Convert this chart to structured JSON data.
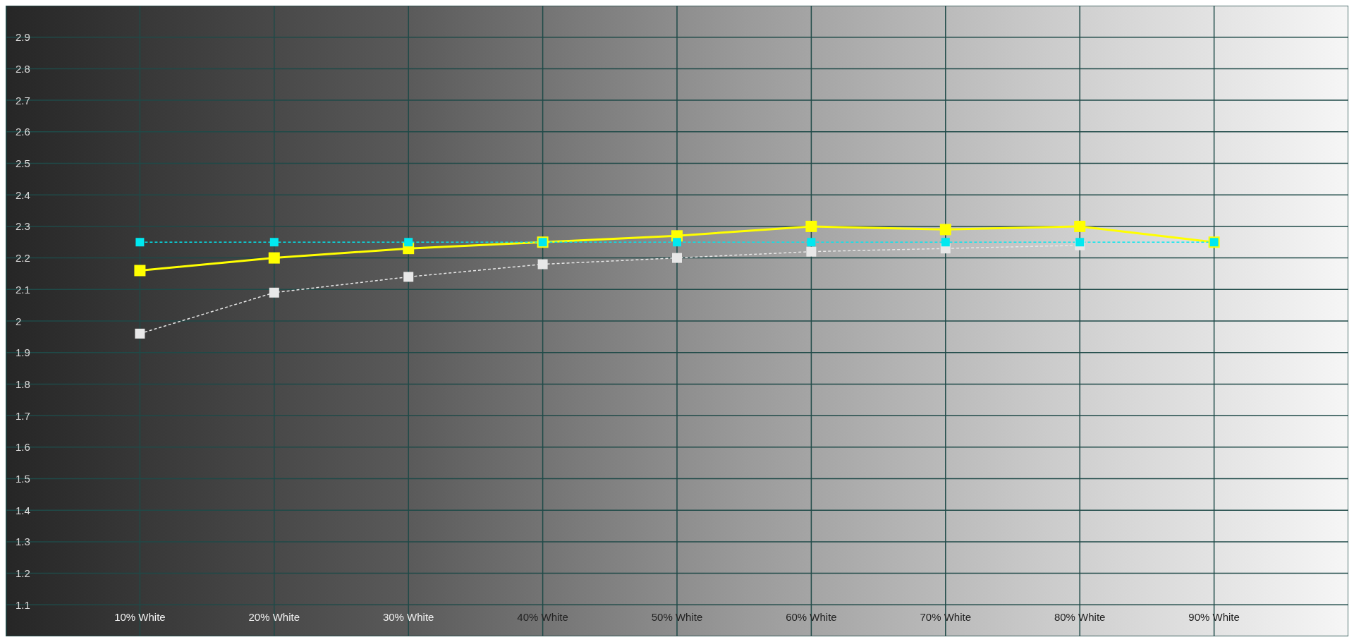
{
  "chart_data": {
    "type": "line",
    "categories": [
      null,
      "10% White",
      "20% White",
      "30% White",
      "40% White",
      "50% White",
      "60% White",
      "70% White",
      "80% White",
      "90% White",
      null
    ],
    "series": [
      {
        "color": "#ffff00",
        "line_style": "solid",
        "values": [
          null,
          2.16,
          2.2,
          2.23,
          2.25,
          2.27,
          2.3,
          2.29,
          2.3,
          2.25,
          null
        ]
      },
      {
        "color": "#e8e8e8",
        "line_style": "dashed",
        "values": [
          null,
          1.96,
          2.09,
          2.14,
          2.18,
          2.2,
          2.22,
          2.23,
          2.24,
          null,
          null
        ]
      },
      {
        "color": "#00e8f0",
        "line_style": "dashed",
        "values": [
          null,
          2.25,
          2.25,
          2.25,
          2.25,
          2.25,
          2.25,
          2.25,
          2.25,
          2.25,
          null
        ]
      }
    ],
    "ylim": [
      1.0,
      3.0
    ],
    "yticks": [
      1.1,
      1.2,
      1.3,
      1.4,
      1.5,
      1.6,
      1.7,
      1.8,
      1.9,
      2,
      2.1,
      2.2,
      2.3,
      2.4,
      2.5,
      2.6,
      2.7,
      2.8,
      2.9
    ],
    "grid": true,
    "marker": "square"
  }
}
